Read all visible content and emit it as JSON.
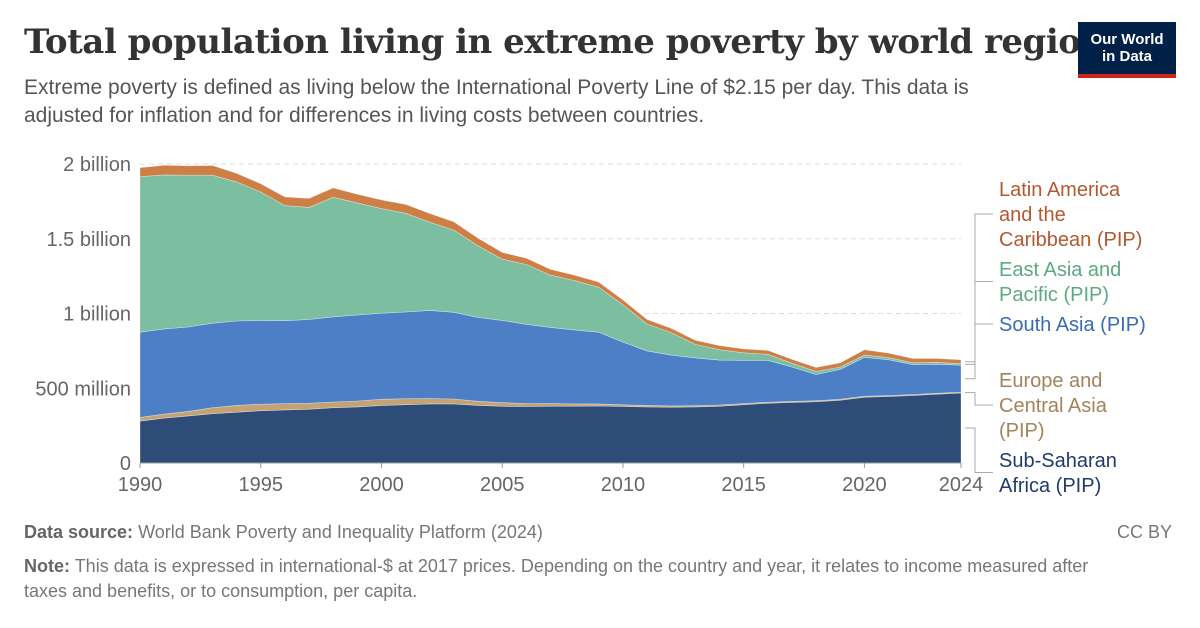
{
  "title": "Total population living in extreme poverty by world region",
  "subtitle": "Extreme poverty is defined as living below the International Poverty Line of $2.15 per day. This data is adjusted for inflation and for differences in living costs between countries.",
  "logo": {
    "text": "Our World in Data",
    "bg_color": "#002147",
    "accent_color": "#ce261e"
  },
  "source": {
    "label": "Data source:",
    "text": "World Bank Poverty and Inequality Platform (2024)"
  },
  "license": "CC BY",
  "note": {
    "label": "Note:",
    "text": "This data is expressed in international-$ at 2017 prices. Depending on the country and year, it relates to income measured after taxes and benefits, or to consumption, per capita."
  },
  "chart_data": {
    "type": "area",
    "stacked": true,
    "x": [
      1990,
      1991,
      1992,
      1993,
      1994,
      1995,
      1996,
      1997,
      1998,
      1999,
      2000,
      2001,
      2002,
      2003,
      2004,
      2005,
      2006,
      2007,
      2008,
      2009,
      2010,
      2011,
      2012,
      2013,
      2014,
      2015,
      2016,
      2017,
      2018,
      2019,
      2020,
      2021,
      2022,
      2023,
      2024
    ],
    "ylim": [
      0,
      2000000000
    ],
    "yticks": [
      0,
      500000000,
      1000000000,
      1500000000,
      2000000000
    ],
    "ytick_labels": [
      "0",
      "500 million",
      "1 billion",
      "1.5 billion",
      "2 billion"
    ],
    "xticks": [
      1990,
      1995,
      2000,
      2005,
      2010,
      2015,
      2020,
      2024
    ],
    "xtick_labels": [
      "1990",
      "1995",
      "2000",
      "2005",
      "2010",
      "2015",
      "2020",
      "2024"
    ],
    "grid": "horizontal-dashed",
    "legend": "right",
    "series": [
      {
        "name": "Sub-Saharan Africa (PIP)",
        "color": "#2d4d78",
        "label_color": "#1e3b6b",
        "values": [
          280000000,
          300000000,
          315000000,
          330000000,
          340000000,
          350000000,
          355000000,
          360000000,
          370000000,
          375000000,
          385000000,
          390000000,
          395000000,
          395000000,
          385000000,
          380000000,
          378000000,
          380000000,
          380000000,
          382000000,
          378000000,
          375000000,
          373000000,
          375000000,
          380000000,
          390000000,
          400000000,
          405000000,
          410000000,
          420000000,
          440000000,
          445000000,
          452000000,
          460000000,
          468000000
        ]
      },
      {
        "name": "Europe and Central Asia (PIP)",
        "color": "#c4a272",
        "label_color": "#a2835a",
        "values": [
          25000000,
          27000000,
          30000000,
          40000000,
          45000000,
          43000000,
          42000000,
          40000000,
          38000000,
          40000000,
          42000000,
          40000000,
          36000000,
          33000000,
          28000000,
          24000000,
          20000000,
          17000000,
          15000000,
          13000000,
          11000000,
          10000000,
          9000000,
          8000000,
          8000000,
          7000000,
          7000000,
          7000000,
          7000000,
          7000000,
          7000000,
          6000000,
          6000000,
          6000000,
          6000000
        ]
      },
      {
        "name": "South Asia (PIP)",
        "color": "#4c7fc6",
        "label_color": "#3a6bb5",
        "values": [
          570000000,
          570000000,
          565000000,
          565000000,
          565000000,
          560000000,
          555000000,
          560000000,
          570000000,
          575000000,
          575000000,
          580000000,
          590000000,
          580000000,
          560000000,
          550000000,
          530000000,
          510000000,
          495000000,
          480000000,
          420000000,
          365000000,
          340000000,
          320000000,
          300000000,
          290000000,
          280000000,
          230000000,
          175000000,
          200000000,
          260000000,
          240000000,
          200000000,
          195000000,
          180000000
        ]
      },
      {
        "name": "East Asia and Pacific (PIP)",
        "color": "#7bbea0",
        "label_color": "#5ba982",
        "values": [
          1040000000,
          1030000000,
          1015000000,
          990000000,
          930000000,
          860000000,
          770000000,
          750000000,
          800000000,
          750000000,
          700000000,
          660000000,
          590000000,
          550000000,
          480000000,
          410000000,
          400000000,
          350000000,
          330000000,
          300000000,
          250000000,
          180000000,
          150000000,
          90000000,
          70000000,
          50000000,
          40000000,
          25000000,
          20000000,
          15000000,
          15000000,
          14000000,
          13000000,
          12000000,
          11000000
        ]
      },
      {
        "name": "Latin America and the Caribbean (PIP)",
        "color": "#cd7f46",
        "label_color": "#b5582d",
        "values": [
          60000000,
          65000000,
          63000000,
          65000000,
          58000000,
          55000000,
          58000000,
          60000000,
          62000000,
          58000000,
          58000000,
          60000000,
          58000000,
          55000000,
          50000000,
          45000000,
          42000000,
          38000000,
          36000000,
          35000000,
          32000000,
          30000000,
          29000000,
          28000000,
          27000000,
          26000000,
          26000000,
          26000000,
          27000000,
          28000000,
          35000000,
          30000000,
          28000000,
          26000000,
          25000000
        ]
      }
    ]
  }
}
